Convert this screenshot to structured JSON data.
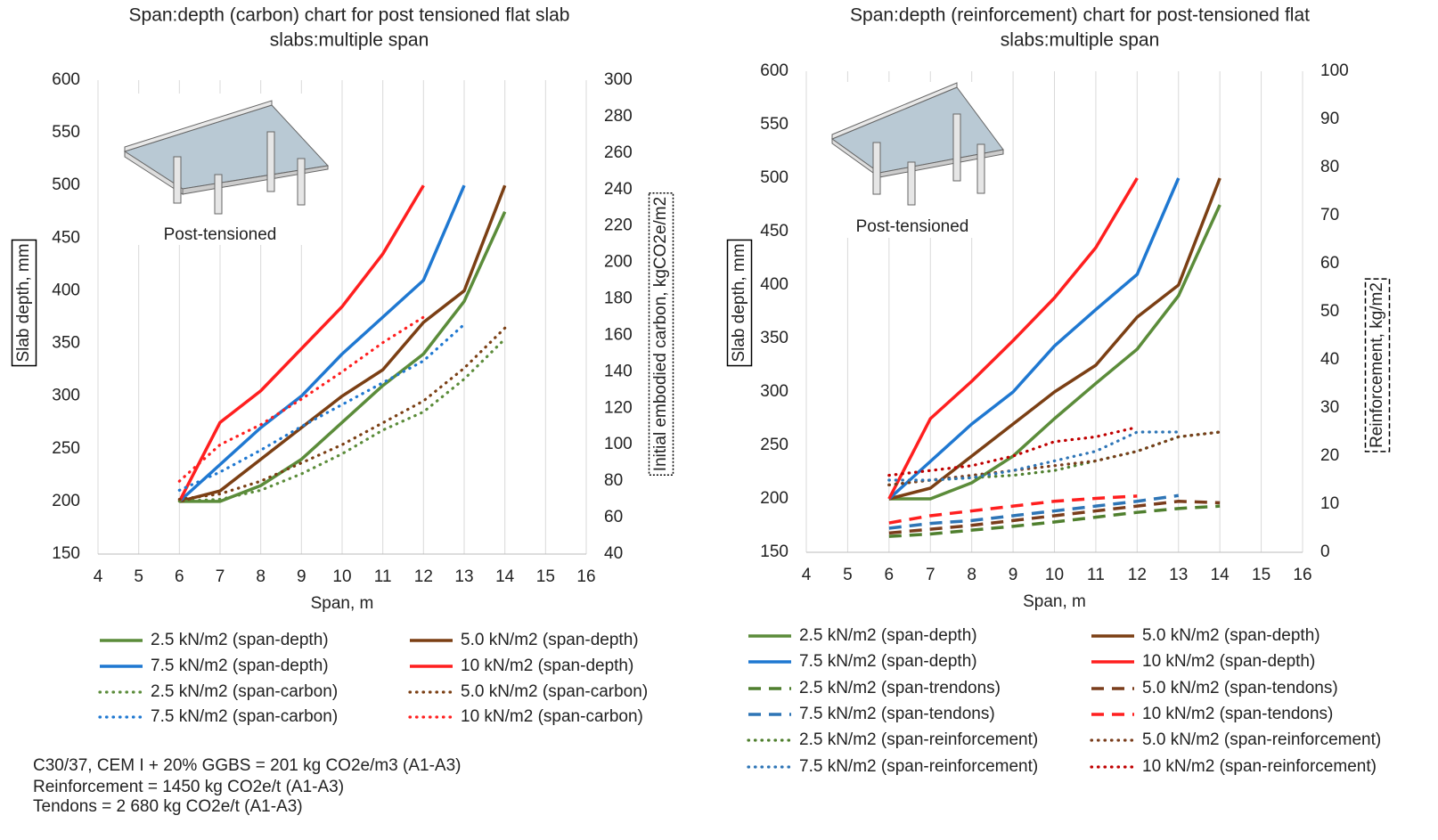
{
  "chart_data": [
    {
      "type": "line",
      "title": [
        "Span:depth (carbon) chart for post tensioned  flat slab",
        "slabs:multiple span"
      ],
      "inset_label": "Post-tensioned",
      "x_label": "Span, m",
      "y_label": "Slab depth, mm",
      "y2_label": "Initial embodied carbon, kgCO2e/m2",
      "xlim": [
        4,
        16
      ],
      "xticks": [
        4,
        5,
        6,
        7,
        8,
        9,
        10,
        11,
        12,
        13,
        14,
        15,
        16
      ],
      "ylim": [
        150,
        600
      ],
      "yticks": [
        150,
        200,
        250,
        300,
        350,
        400,
        450,
        500,
        550,
        600
      ],
      "y2lim": [
        40,
        300
      ],
      "y2ticks": [
        40,
        60,
        80,
        100,
        120,
        140,
        160,
        180,
        200,
        220,
        240,
        260,
        280,
        300
      ],
      "grid": "x",
      "x": [
        6,
        7,
        8,
        9,
        10,
        11,
        12,
        13,
        14
      ],
      "series": [
        {
          "name": "2.5 kN/m2 (span-depth)",
          "color": "#5b8c3a",
          "dash": "solid",
          "values": [
            200,
            200,
            215,
            240,
            275,
            310,
            340,
            390,
            475
          ]
        },
        {
          "name": "5.0 kN/m2 (span-depth)",
          "color": "#7b3f14",
          "dash": "solid",
          "values": [
            200,
            210,
            240,
            270,
            300,
            325,
            370,
            400,
            500
          ]
        },
        {
          "name": "7.5 kN/m2 (span-depth)",
          "color": "#1f78d1",
          "dash": "solid",
          "values": [
            200,
            235,
            270,
            300,
            340,
            375,
            410,
            500,
            null
          ]
        },
        {
          "name": "10 kN/m2 (span-depth)",
          "color": "#ff1f1f",
          "dash": "solid",
          "values": [
            200,
            275,
            305,
            345,
            385,
            435,
            500,
            null,
            null
          ]
        },
        {
          "name": "2.5 kN/m2 (span-carbon)",
          "color": "#5b8c3a",
          "dash": "dotted",
          "axis": "y2",
          "values": [
            69,
            70,
            75,
            84,
            95,
            108,
            118,
            136,
            158
          ]
        },
        {
          "name": "5.0 kN/m2 (span-carbon)",
          "color": "#7b3f14",
          "dash": "dotted",
          "axis": "y2",
          "values": [
            70,
            73,
            80,
            90,
            100,
            112,
            124,
            142,
            164
          ]
        },
        {
          "name": "7.5 kN/m2 (span-carbon)",
          "color": "#1f78d1",
          "dash": "dotted",
          "axis": "y2",
          "values": [
            75,
            85,
            97,
            110,
            122,
            134,
            146,
            166,
            null
          ]
        },
        {
          "name": "10 kN/m2 (span-carbon)",
          "color": "#ff1f1f",
          "dash": "dotted",
          "axis": "y2",
          "values": [
            80,
            100,
            111,
            125,
            140,
            156,
            170,
            null,
            null
          ]
        }
      ]
    },
    {
      "type": "line",
      "title": [
        "Span:depth (reinforcement) chart for post-tensioned flat",
        "slabs:multiple span"
      ],
      "inset_label": "Post-tensioned",
      "x_label": "Span, m",
      "y_label": "Slab depth, mm",
      "y2_label": "Reinforcement, kg/m2",
      "xlim": [
        4,
        16
      ],
      "xticks": [
        4,
        5,
        6,
        7,
        8,
        9,
        10,
        11,
        12,
        13,
        14,
        15,
        16
      ],
      "ylim": [
        150,
        600
      ],
      "yticks": [
        150,
        200,
        250,
        300,
        350,
        400,
        450,
        500,
        550,
        600
      ],
      "y2lim": [
        0,
        100
      ],
      "y2ticks": [
        0,
        10,
        20,
        30,
        40,
        50,
        60,
        70,
        80,
        90,
        100
      ],
      "grid": "x",
      "x": [
        6,
        7,
        8,
        9,
        10,
        11,
        12,
        13,
        14
      ],
      "series": [
        {
          "name": "2.5 kN/m2 (span-depth)",
          "color": "#5b8c3a",
          "dash": "solid",
          "values": [
            200,
            200,
            215,
            240,
            275,
            308,
            340,
            390,
            475
          ]
        },
        {
          "name": "5.0 kN/m2 (span-depth)",
          "color": "#7b3f14",
          "dash": "solid",
          "values": [
            200,
            210,
            240,
            270,
            300,
            325,
            370,
            400,
            500
          ]
        },
        {
          "name": "7.5 kN/m2 (span-depth)",
          "color": "#1f78d1",
          "dash": "solid",
          "values": [
            200,
            235,
            270,
            300,
            343,
            377,
            410,
            500,
            null
          ]
        },
        {
          "name": "10 kN/m2 (span-depth)",
          "color": "#ff1f1f",
          "dash": "solid",
          "values": [
            200,
            275,
            310,
            348,
            388,
            435,
            500,
            null,
            null
          ]
        },
        {
          "name": "2.5 kN/m2 (span-trendons)",
          "color": "#4f7f2e",
          "dash": "dashed",
          "axis": "y2",
          "values": [
            3.3,
            3.8,
            4.6,
            5.4,
            6.3,
            7.3,
            8.3,
            9.1,
            9.6
          ]
        },
        {
          "name": "5.0 kN/m2 (span-tendons)",
          "color": "#7a3d1c",
          "dash": "dashed",
          "axis": "y2",
          "values": [
            4,
            4.8,
            5.6,
            6.6,
            7.6,
            8.6,
            9.6,
            10.6,
            10.3
          ]
        },
        {
          "name": "7.5 kN/m2 (span-tendons)",
          "color": "#2e75b6",
          "dash": "dashed",
          "axis": "y2",
          "values": [
            5,
            6,
            6.6,
            7.6,
            8.6,
            9.6,
            10.6,
            11.8,
            null
          ]
        },
        {
          "name": "10 kN/m2 (span-tendons)",
          "color": "#ff1f1f",
          "dash": "dashed",
          "axis": "y2",
          "values": [
            6.1,
            7.6,
            8.6,
            9.6,
            10.6,
            11.2,
            11.7,
            null,
            null
          ]
        },
        {
          "name": "2.5 kN/m2 (span-reinforcement)",
          "color": "#4f7f2e",
          "dash": "dotted",
          "axis": "y2",
          "values": [
            14,
            15,
            15.5,
            16,
            17,
            19,
            21,
            24,
            25
          ]
        },
        {
          "name": "5.0 kN/m2 (span-reinforcement)",
          "color": "#7a3d1c",
          "dash": "dotted",
          "axis": "y2",
          "values": [
            14,
            15,
            16,
            17,
            18,
            19,
            21,
            24,
            25
          ]
        },
        {
          "name": "7.5 kN/m2 (span-reinforcement)",
          "color": "#2e75b6",
          "dash": "dotted",
          "axis": "y2",
          "values": [
            15,
            15,
            15.5,
            17,
            19,
            21,
            25,
            25,
            null
          ]
        },
        {
          "name": "10 kN/m2 (span-reinforcement)",
          "color": "#c00000",
          "dash": "dotted",
          "axis": "y2",
          "values": [
            16,
            17,
            18,
            20,
            23,
            24,
            26,
            null,
            null
          ]
        }
      ]
    }
  ],
  "notes": [
    "C30/37, CEM I + 20% GGBS = 201 kg CO2e/m3 (A1-A3)",
    "Reinforcement  = 1450 kg CO2e/t (A1-A3)",
    "Tendons = 2 680 kg CO2e/t (A1-A3)"
  ]
}
